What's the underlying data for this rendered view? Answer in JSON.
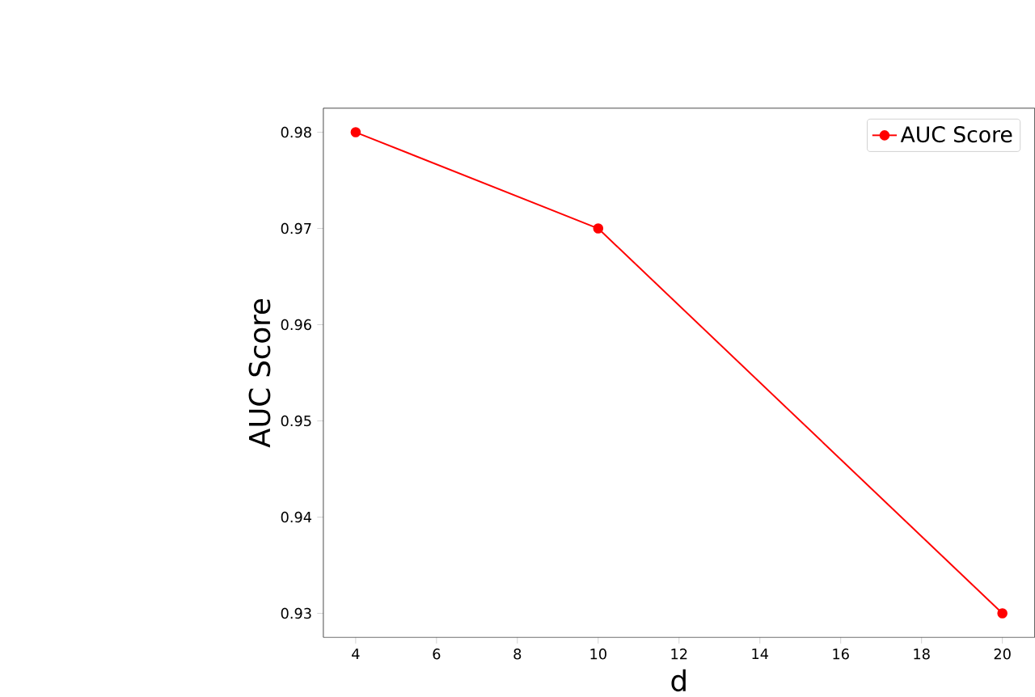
{
  "chart_data": {
    "type": "line",
    "xlabel": "d",
    "ylabel": "AUC Score",
    "x": [
      4,
      10,
      20
    ],
    "series": [
      {
        "name": "AUC Score",
        "color": "#ff0000",
        "values": [
          0.98,
          0.97,
          0.93
        ]
      }
    ],
    "xlim": [
      3.2,
      20.8
    ],
    "ylim": [
      0.9275,
      0.9825
    ],
    "xticks": [
      4,
      6,
      8,
      10,
      12,
      14,
      16,
      18,
      20
    ],
    "yticks": [
      0.93,
      0.94,
      0.95,
      0.96,
      0.97,
      0.98
    ],
    "marker": "circle",
    "line_style": "solid",
    "legend": "top right",
    "grid": false
  }
}
